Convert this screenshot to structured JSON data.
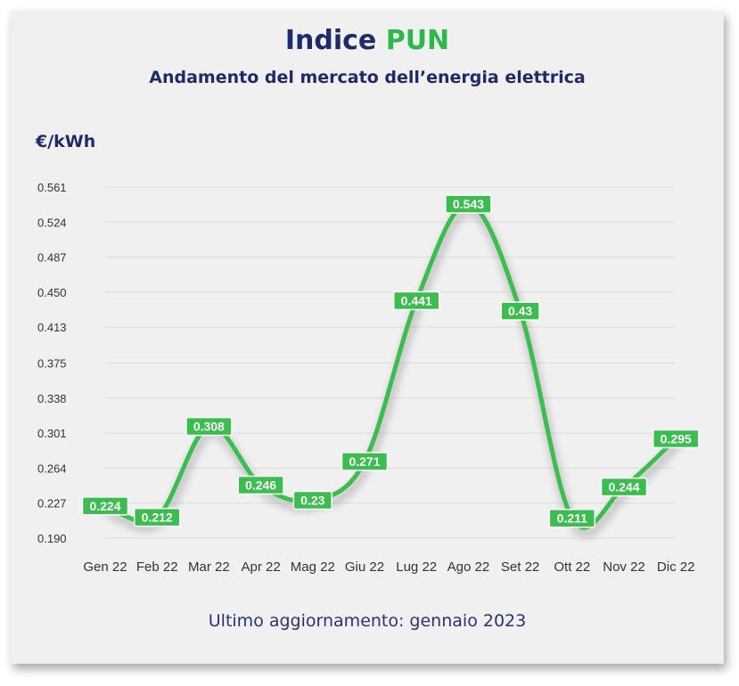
{
  "header": {
    "title_main": "Indice",
    "title_accent": "PUN",
    "subtitle": "Andamento del mercato dell’energia elettrica",
    "unit_label": "€/kWh"
  },
  "footer": {
    "update_text": "Ultimo aggiornamento: gennaio 2023"
  },
  "colors": {
    "navy": "#1f2a6b",
    "green": "#2db84a",
    "line": "#3cbd4f",
    "grid": "#dcdcdc",
    "panel": "#f0f0f0"
  },
  "chart_data": {
    "type": "line",
    "title": "Indice PUN",
    "subtitle": "Andamento del mercato dell’energia elettrica",
    "ylabel": "€/kWh",
    "xlabel": "",
    "categories": [
      "Gen 22",
      "Feb 22",
      "Mar 22",
      "Apr 22",
      "Mag 22",
      "Giu 22",
      "Lug 22",
      "Ago 22",
      "Set 22",
      "Ott 22",
      "Nov 22",
      "Dic 22"
    ],
    "series": [
      {
        "values": [
          0.224,
          0.212,
          0.308,
          0.246,
          0.23,
          0.271,
          0.441,
          0.543,
          0.43,
          0.211,
          0.244,
          0.295
        ],
        "labels": [
          "0.224",
          "0.212",
          "0.308",
          "0.246",
          "0.23",
          "0.271",
          "0.441",
          "0.543",
          "0.43",
          "0.211",
          "0.244",
          "0.295"
        ]
      }
    ],
    "yticks": [
      "0.190",
      "0.227",
      "0.264",
      "0.301",
      "0.338",
      "0.375",
      "0.413",
      "0.450",
      "0.487",
      "0.524",
      "0.561"
    ],
    "ylim": [
      0.19,
      0.561
    ],
    "grid": true,
    "legend": "none",
    "smooth": true
  }
}
